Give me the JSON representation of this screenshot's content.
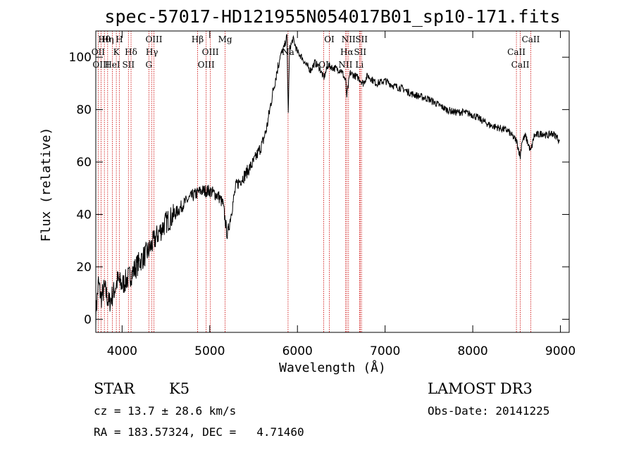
{
  "chart_data": {
    "type": "line",
    "title": "spec-57017-HD121955N054017B01_sp10-171.fits",
    "xlabel": "Wavelength (Å)",
    "ylabel": "Flux (relative)",
    "xlim": [
      3700,
      9100
    ],
    "ylim": [
      -5,
      110
    ],
    "x_ticks": [
      4000,
      5000,
      6000,
      7000,
      8000,
      9000
    ],
    "y_ticks": [
      0,
      20,
      40,
      60,
      80,
      100
    ],
    "series": [
      {
        "name": "spectrum",
        "color": "#000000",
        "x": [
          3700,
          3730,
          3760,
          3800,
          3850,
          3900,
          3950,
          4000,
          4100,
          4200,
          4300,
          4400,
          4500,
          4600,
          4700,
          4800,
          4900,
          5000,
          5100,
          5150,
          5200,
          5300,
          5400,
          5500,
          5600,
          5650,
          5700,
          5750,
          5800,
          5850,
          5880,
          5895,
          5910,
          5950,
          6000,
          6050,
          6100,
          6150,
          6200,
          6250,
          6300,
          6350,
          6400,
          6500,
          6550,
          6563,
          6600,
          6650,
          6700,
          6750,
          6800,
          6900,
          7000,
          7100,
          7200,
          7300,
          7400,
          7500,
          7600,
          7700,
          7800,
          7900,
          8000,
          8100,
          8200,
          8300,
          8400,
          8450,
          8500,
          8542,
          8560,
          8600,
          8662,
          8700,
          8800,
          8850,
          8900,
          8950,
          8990
        ],
        "y": [
          2,
          14,
          8,
          12,
          6,
          10,
          15,
          13,
          17,
          22,
          26,
          32,
          37,
          40,
          44,
          47,
          49,
          49,
          47,
          44,
          32,
          51,
          55,
          60,
          67,
          73,
          83,
          92,
          100,
          104,
          108,
          78,
          103,
          107,
          102,
          100,
          97,
          95,
          98,
          96,
          92,
          97,
          96,
          95,
          91,
          85,
          94,
          93,
          92,
          90,
          93,
          90,
          91,
          89,
          88,
          86,
          85,
          84,
          82,
          80,
          79,
          79,
          78,
          76,
          74,
          73,
          72,
          70,
          68,
          62,
          68,
          70,
          64,
          70,
          71,
          70,
          71,
          70,
          68
        ]
      }
    ],
    "reference_lines": [
      {
        "label": "Hθ",
        "wavelength": 3798
      },
      {
        "label": "OII",
        "wavelength": 3727
      },
      {
        "label": "OIII",
        "wavelength": 3760
      },
      {
        "label": "Hη",
        "wavelength": 3835
      },
      {
        "label": "K",
        "wavelength": 3934
      },
      {
        "label": "HeI",
        "wavelength": 3889
      },
      {
        "label": "H",
        "wavelength": 3968
      },
      {
        "label": "Hδ",
        "wavelength": 4102
      },
      {
        "label": "SII",
        "wavelength": 4072
      },
      {
        "label": "OIII",
        "wavelength": 4363
      },
      {
        "label": "Hγ",
        "wavelength": 4340
      },
      {
        "label": "G",
        "wavelength": 4305
      },
      {
        "label": "Hβ",
        "wavelength": 4861
      },
      {
        "label": "OIII",
        "wavelength": 5007
      },
      {
        "label": "OIII",
        "wavelength": 4959
      },
      {
        "label": "Mg",
        "wavelength": 5175
      },
      {
        "label": "Na",
        "wavelength": 5893
      },
      {
        "label": "OI",
        "wavelength": 6300
      },
      {
        "label": "OI",
        "wavelength": 6364
      },
      {
        "label": "Hα",
        "wavelength": 6563
      },
      {
        "label": "NII",
        "wavelength": 6548
      },
      {
        "label": "NII",
        "wavelength": 6583
      },
      {
        "label": "SII",
        "wavelength": 6716
      },
      {
        "label": "Li",
        "wavelength": 6708
      },
      {
        "label": "SII",
        "wavelength": 6731
      },
      {
        "label": "CaII",
        "wavelength": 8498
      },
      {
        "label": "CaII",
        "wavelength": 8542
      },
      {
        "label": "CaII",
        "wavelength": 8662
      }
    ]
  },
  "info": {
    "object_class": "STAR",
    "subclass": "K5",
    "survey": "LAMOST DR3",
    "redshift_line": "cz = 13.7 ± 28.6 km/s",
    "obs_date_line": "Obs-Date: 20141225",
    "coords_line": "RA = 183.57324, DEC =   4.71460"
  },
  "colors": {
    "spectrum": "#000000",
    "reference_line": "#cc0000",
    "background": "#ffffff"
  }
}
